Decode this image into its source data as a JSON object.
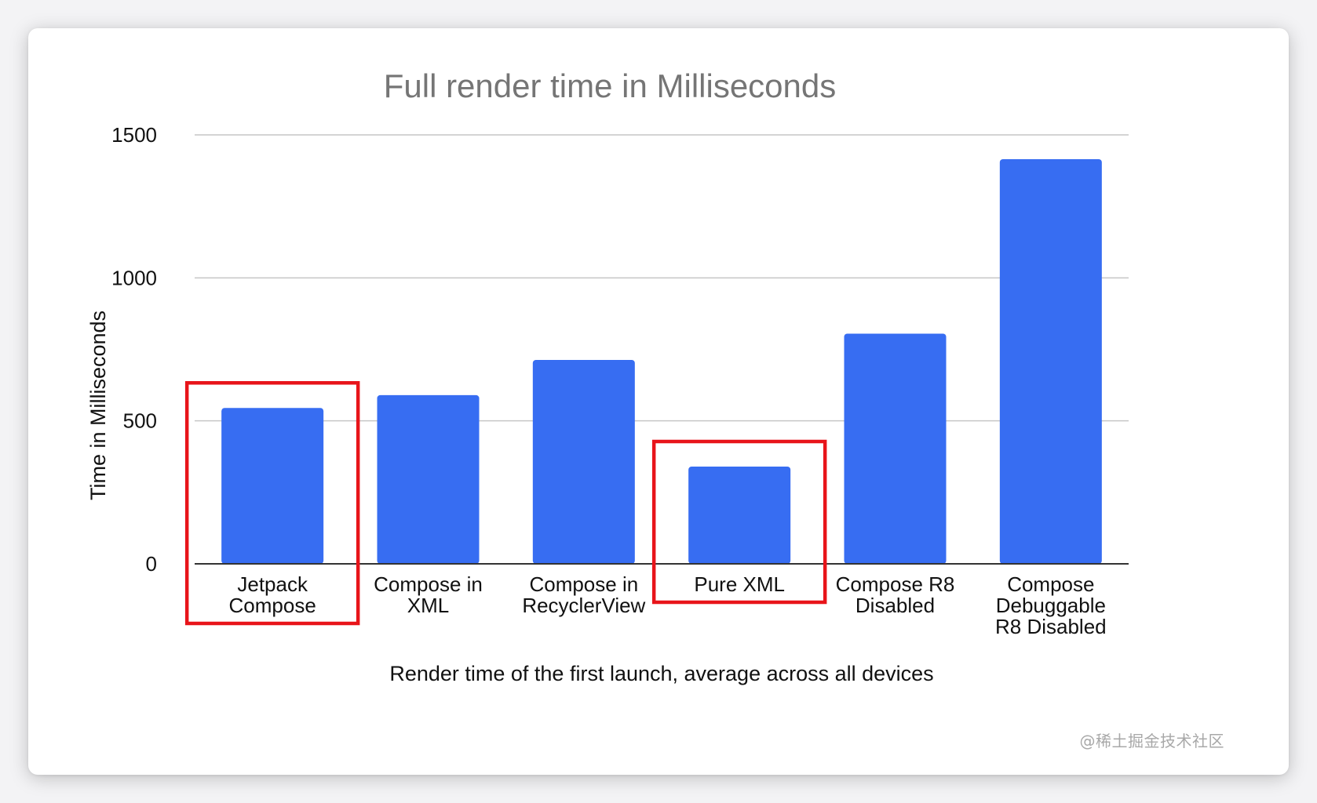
{
  "chart_data": {
    "type": "bar",
    "title": "Full render time in Milliseconds",
    "xlabel": "Render time of the first launch, average across all devices",
    "ylabel": "Time in Milliseconds",
    "ylim": [
      0,
      1500
    ],
    "yticks": [
      0,
      500,
      1000,
      1500
    ],
    "grid": true,
    "categories": [
      [
        "Jetpack",
        "Compose"
      ],
      [
        "Compose in",
        "XML"
      ],
      [
        "Compose in",
        "RecyclerView"
      ],
      [
        "Pure XML"
      ],
      [
        "Compose R8",
        "Disabled"
      ],
      [
        "Compose",
        "Debuggable",
        "R8 Disabled"
      ]
    ],
    "values": [
      545,
      590,
      713,
      340,
      805,
      1415
    ],
    "highlighted": [
      0,
      3
    ],
    "bar_color": "#376df2",
    "highlight_color": "#e8141a",
    "title_color": "#757575",
    "grid_color": "#c6c6c6"
  },
  "watermark": "@稀土掘金技术社区"
}
